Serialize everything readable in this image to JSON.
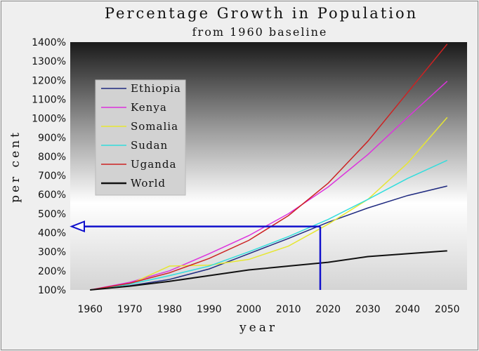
{
  "chart_data": {
    "type": "line",
    "title": "Percentage Growth in Population",
    "subtitle": "from 1960 baseline",
    "xlabel": "year",
    "ylabel": "per cent",
    "x": [
      1960,
      1970,
      1980,
      1990,
      2000,
      2010,
      2020,
      2030,
      2040,
      2050
    ],
    "xlim": [
      1955,
      2055
    ],
    "ylim": [
      100,
      1400
    ],
    "y_ticks": [
      100,
      200,
      300,
      400,
      500,
      600,
      700,
      800,
      900,
      1000,
      1100,
      1200,
      1300,
      1400
    ],
    "y_tick_labels": [
      "100%",
      "200%",
      "300%",
      "400%",
      "500%",
      "600%",
      "700%",
      "800%",
      "900%",
      "1000%",
      "1100%",
      "1200%",
      "1300%",
      "1400%"
    ],
    "x_tick_labels": [
      "1960",
      "1970",
      "1980",
      "1990",
      "2000",
      "2010",
      "2020",
      "2030",
      "2040",
      "2050"
    ],
    "legend_position": "top-left",
    "series": [
      {
        "name": "Ethiopia",
        "color": "#1f2a80",
        "values": [
          100,
          122,
          155,
          210,
          290,
          370,
          455,
          530,
          595,
          645
        ]
      },
      {
        "name": "Kenya",
        "color": "#dd33dd",
        "values": [
          100,
          140,
          200,
          290,
          385,
          500,
          640,
          810,
          1005,
          1195
        ]
      },
      {
        "name": "Somalia",
        "color": "#e6e633",
        "values": [
          100,
          130,
          225,
          230,
          260,
          330,
          445,
          575,
          765,
          1005
        ]
      },
      {
        "name": "Sudan",
        "color": "#33dddd",
        "values": [
          100,
          130,
          175,
          225,
          300,
          380,
          470,
          575,
          685,
          780
        ]
      },
      {
        "name": "Uganda",
        "color": "#cc2222",
        "values": [
          100,
          135,
          190,
          265,
          360,
          490,
          660,
          880,
          1135,
          1390
        ]
      },
      {
        "name": "World",
        "color": "#111111",
        "values": [
          100,
          120,
          145,
          175,
          205,
          225,
          245,
          275,
          290,
          305
        ]
      }
    ],
    "annotation": {
      "type": "arrow",
      "color": "#1111cc",
      "x": 2018,
      "y": 433
    }
  }
}
